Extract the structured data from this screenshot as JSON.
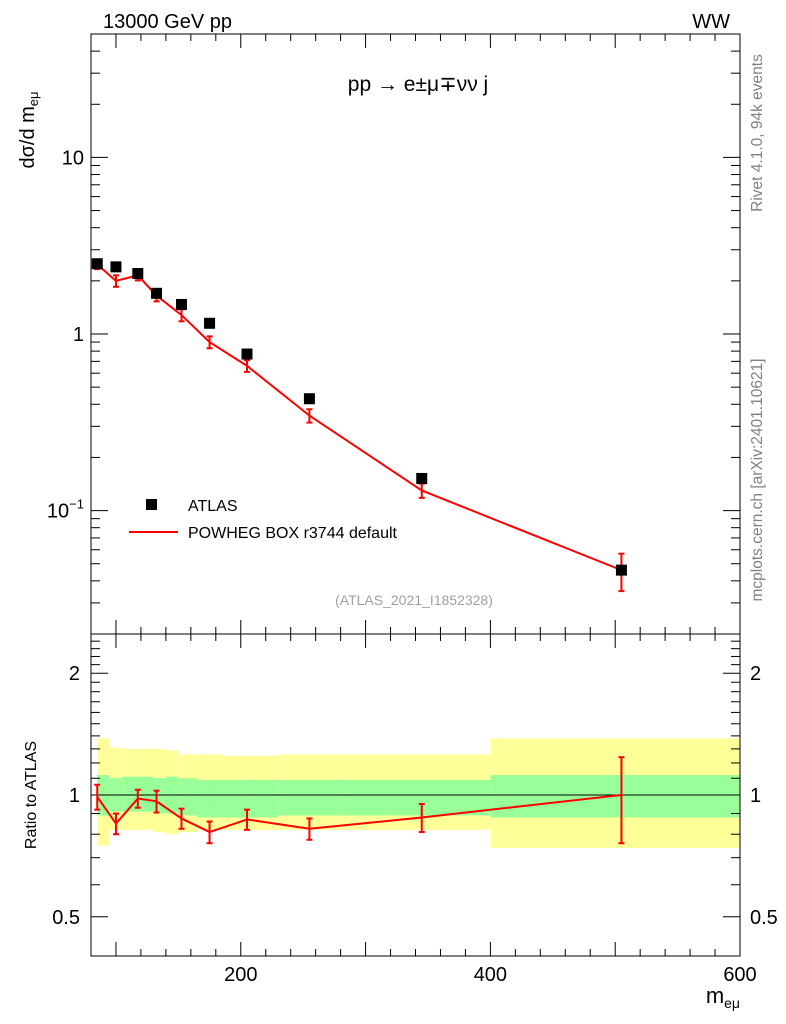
{
  "header": {
    "left": "13000 GeV pp",
    "right": "WW"
  },
  "process_label": "pp  →  e±μ∓νν j",
  "side_labels": {
    "rivet": "Rivet 4.1.0,  94k events",
    "mcplots": "mcplots.cern.ch [arXiv:2401.10621]"
  },
  "analysis_id": "(ATLAS_2021_I1852328)",
  "chart_data": [
    {
      "type": "scatter",
      "name": "main",
      "title": "pp → e±μ∓νν j",
      "ylabel": "dσ/d m_eμ",
      "yscale": "log",
      "xlim": [
        80,
        600
      ],
      "ylim": [
        0.02,
        50
      ],
      "y_tick_labels": [
        {
          "value": 10,
          "label": "10"
        },
        {
          "value": 1,
          "label": "1"
        },
        {
          "value": 0.1,
          "label": "10^-1"
        }
      ],
      "legend": {
        "placement": "bottom-left",
        "entries": [
          "ATLAS",
          "POWHEG BOX r3744 default"
        ]
      },
      "series": [
        {
          "name": "ATLAS",
          "style": "markers",
          "color": "#000000",
          "x": [
            85,
            100,
            117.5,
            132.5,
            152.5,
            175,
            205,
            255,
            345,
            505
          ],
          "y": [
            2.5,
            2.4,
            2.2,
            1.7,
            1.47,
            1.15,
            0.77,
            0.43,
            0.152,
            0.046
          ]
        },
        {
          "name": "POWHEG BOX r3744 default",
          "style": "line",
          "color": "#ff0000",
          "x": [
            85,
            100,
            117.5,
            132.5,
            152.5,
            175,
            205,
            255,
            345,
            505
          ],
          "y": [
            2.48,
            2.0,
            2.15,
            1.65,
            1.28,
            0.9,
            0.66,
            0.345,
            0.13,
            0.046
          ],
          "err": [
            0.15,
            0.15,
            0.14,
            0.12,
            0.1,
            0.07,
            0.05,
            0.03,
            0.012,
            0.011
          ]
        }
      ]
    },
    {
      "type": "line",
      "name": "ratio",
      "xlabel": "m_eμ",
      "ylabel": "Ratio to ATLAS",
      "yscale": "log",
      "xlim": [
        80,
        600
      ],
      "ylim": [
        0.4,
        2.5
      ],
      "x_tick_labels": [
        {
          "value": 200,
          "label": "200"
        },
        {
          "value": 400,
          "label": "400"
        },
        {
          "value": 600,
          "label": "600"
        }
      ],
      "y_tick_labels": [
        {
          "value": 0.5,
          "label": "0.5"
        },
        {
          "value": 1,
          "label": "1"
        },
        {
          "value": 2,
          "label": "2"
        }
      ],
      "bands": {
        "bin_edges": [
          85,
          95,
          105,
          130,
          140,
          150,
          165,
          185,
          210,
          230,
          280,
          320,
          400,
          600
        ],
        "inner": [
          [
            0.89,
            1.12
          ],
          [
            0.91,
            1.1
          ],
          [
            0.91,
            1.11
          ],
          [
            0.9,
            1.1
          ],
          [
            0.9,
            1.11
          ],
          [
            0.89,
            1.1
          ],
          [
            0.88,
            1.09
          ],
          [
            0.88,
            1.09
          ],
          [
            0.88,
            1.09
          ],
          [
            0.89,
            1.09
          ],
          [
            0.89,
            1.09
          ],
          [
            0.89,
            1.09
          ],
          [
            0.88,
            1.12
          ]
        ],
        "outer": [
          [
            0.75,
            1.38
          ],
          [
            0.82,
            1.31
          ],
          [
            0.82,
            1.3
          ],
          [
            0.81,
            1.3
          ],
          [
            0.8,
            1.29
          ],
          [
            0.81,
            1.26
          ],
          [
            0.82,
            1.26
          ],
          [
            0.82,
            1.25
          ],
          [
            0.82,
            1.25
          ],
          [
            0.82,
            1.26
          ],
          [
            0.82,
            1.26
          ],
          [
            0.82,
            1.26
          ],
          [
            0.74,
            1.38
          ]
        ],
        "inner_color": "#99ff99",
        "outer_color": "#ffff99"
      },
      "series": [
        {
          "name": "POWHEG BOX r3744 default",
          "color": "#ff0000",
          "x": [
            85,
            100,
            117.5,
            132.5,
            152.5,
            175,
            205,
            255,
            345,
            505
          ],
          "y": [
            0.99,
            0.85,
            0.98,
            0.965,
            0.875,
            0.81,
            0.87,
            0.825,
            0.88,
            1.0
          ],
          "err": [
            0.07,
            0.05,
            0.05,
            0.06,
            0.05,
            0.05,
            0.05,
            0.05,
            0.07,
            0.24
          ]
        }
      ]
    }
  ]
}
